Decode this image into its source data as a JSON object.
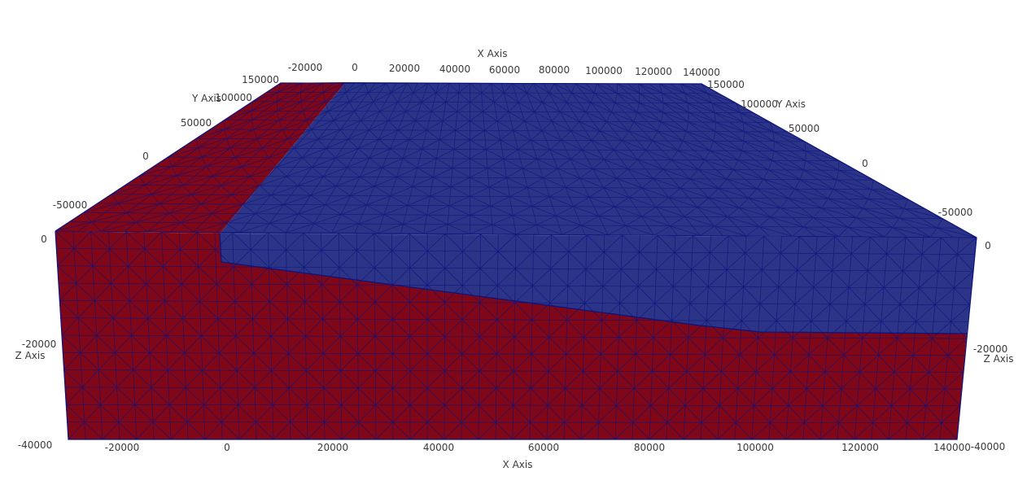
{
  "axes": {
    "x_top": {
      "title": "X Axis",
      "ticks": [
        "-20000",
        "0",
        "20000",
        "40000",
        "60000",
        "80000",
        "100000",
        "120000",
        "140000"
      ]
    },
    "x_bottom": {
      "title": "X Axis",
      "ticks": [
        "-20000",
        "0",
        "20000",
        "40000",
        "60000",
        "80000",
        "100000",
        "120000",
        "140000"
      ]
    },
    "y_left": {
      "title": "Y Axis",
      "ticks": [
        "150000",
        "100000",
        "50000",
        "0",
        "-50000"
      ]
    },
    "y_right": {
      "title": "Y Axis",
      "ticks": [
        "150000",
        "100000",
        "50000",
        "0",
        "-50000"
      ]
    },
    "z_left": {
      "title": "Z Axis",
      "ticks": [
        "0",
        "-20000",
        "-40000"
      ]
    },
    "z_right": {
      "title": "Z Axis",
      "ticks": [
        "0",
        "-20000",
        "-40000"
      ]
    }
  },
  "colors": {
    "lower_region": "#7f0717",
    "upper_region": "#2b3486",
    "mesh_lines": "#0b137e",
    "background": "#ffffff"
  }
}
